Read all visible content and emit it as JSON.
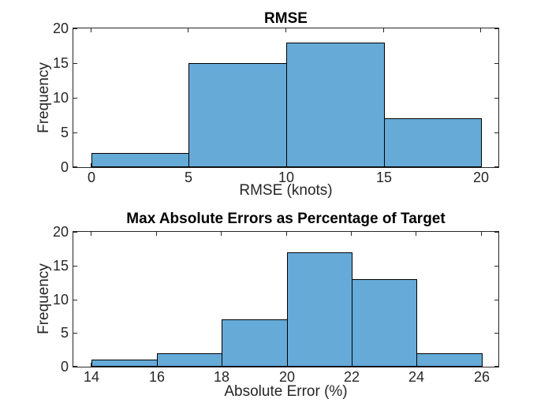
{
  "figure": {
    "background": "#ffffff",
    "colors": {
      "bar_fill": "#66aad7",
      "bar_edge": "#000000",
      "axis": "#262626",
      "tick_text": "#262626",
      "label_text": "#262626",
      "title_text": "#000000"
    }
  },
  "chart_data": [
    {
      "type": "bar",
      "subtype": "histogram",
      "title": "RMSE",
      "xlabel": "RMSE (knots)",
      "ylabel": "Frequency",
      "bin_edges": [
        0,
        5,
        10,
        15,
        20
      ],
      "values": [
        2,
        15,
        18,
        7
      ],
      "xlim": [
        -0.93,
        20.89
      ],
      "ylim": [
        0,
        20
      ],
      "xticks": [
        0,
        5,
        10,
        15,
        20
      ],
      "yticks": [
        0,
        5,
        10,
        15,
        20
      ],
      "grid": false,
      "legend": null
    },
    {
      "type": "bar",
      "subtype": "histogram",
      "title": "Max Absolute Errors as Percentage of Target",
      "xlabel": "Absolute Error (%)",
      "ylabel": "Frequency",
      "bin_edges": [
        14,
        16,
        18,
        20,
        22,
        24,
        26
      ],
      "values": [
        1,
        2,
        7,
        17,
        13,
        2
      ],
      "xlim": [
        13.44,
        26.51
      ],
      "ylim": [
        0,
        20
      ],
      "xticks": [
        14,
        16,
        18,
        20,
        22,
        24,
        26
      ],
      "yticks": [
        0,
        5,
        10,
        15,
        20
      ],
      "grid": false,
      "legend": null
    }
  ]
}
